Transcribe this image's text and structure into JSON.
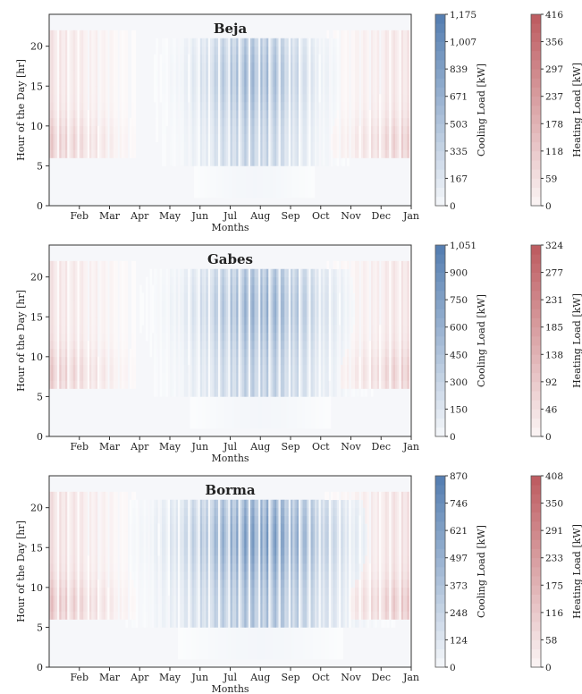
{
  "chart_data": [
    {
      "type": "heatmap",
      "title": "Beja",
      "xlabel": "Months",
      "ylabel": "Hour of the Day [hr]",
      "x_ticks": [
        "Feb",
        "Mar",
        "Apr",
        "May",
        "Jun",
        "Jul",
        "Aug",
        "Sep",
        "Oct",
        "Nov",
        "Dec",
        "Jan"
      ],
      "y_ticks": [
        0,
        5,
        10,
        15,
        20
      ],
      "ylim": [
        0,
        24
      ],
      "cooling": {
        "label": "Cooling Load [kW]",
        "ticks": [
          1175,
          1007,
          839,
          671,
          503,
          335,
          167,
          0
        ],
        "max": 1175,
        "color": "#3f6ea7",
        "peak_month": 6.8,
        "peak_width": 1.9,
        "hours": [
          5.5,
          20.5
        ],
        "peak_fraction": 0.55
      },
      "heating": {
        "label": "Heating Load [kW]",
        "ticks": [
          416,
          356,
          297,
          237,
          178,
          118,
          59,
          0
        ],
        "max": 416,
        "color": "#b5474c",
        "hours": [
          6,
          21.5
        ],
        "peak_fraction": 0.35
      }
    },
    {
      "type": "heatmap",
      "title": "Gabes",
      "xlabel": "Months",
      "ylabel": "Hour of the Day [hr]",
      "x_ticks": [
        "Feb",
        "Mar",
        "Apr",
        "May",
        "Jun",
        "Jul",
        "Aug",
        "Sep",
        "Oct",
        "Nov",
        "Dec",
        "Jan"
      ],
      "y_ticks": [
        0,
        5,
        10,
        15,
        20
      ],
      "ylim": [
        0,
        24
      ],
      "cooling": {
        "label": "Cooling Load [kW]",
        "ticks": [
          1051,
          900,
          750,
          600,
          450,
          300,
          150,
          0
        ],
        "max": 1051,
        "color": "#3f6ea7",
        "peak_month": 7.0,
        "peak_width": 2.2,
        "hours": [
          5.5,
          20.5
        ],
        "peak_fraction": 0.6
      },
      "heating": {
        "label": "Heating Load [kW]",
        "ticks": [
          324,
          277,
          231,
          185,
          138,
          92,
          46,
          0
        ],
        "max": 324,
        "color": "#b5474c",
        "hours": [
          6,
          21.5
        ],
        "peak_fraction": 0.35
      }
    },
    {
      "type": "heatmap",
      "title": "Borma",
      "xlabel": "Months",
      "ylabel": "Hour of the Day [hr]",
      "x_ticks": [
        "Feb",
        "Mar",
        "Apr",
        "May",
        "Jun",
        "Jul",
        "Aug",
        "Sep",
        "Oct",
        "Nov",
        "Dec",
        "Jan"
      ],
      "y_ticks": [
        0,
        5,
        10,
        15,
        20
      ],
      "ylim": [
        0,
        24
      ],
      "cooling": {
        "label": "Cooling Load [kW]",
        "ticks": [
          870,
          746,
          621,
          497,
          373,
          248,
          124,
          0
        ],
        "max": 870,
        "color": "#3f6ea7",
        "peak_month": 7.0,
        "peak_width": 2.6,
        "hours": [
          5.5,
          21
        ],
        "peak_fraction": 0.75
      },
      "heating": {
        "label": "Heating Load [kW]",
        "ticks": [
          408,
          350,
          291,
          233,
          175,
          116,
          58,
          0
        ],
        "max": 408,
        "color": "#b5474c",
        "hours": [
          6,
          21.5
        ],
        "peak_fraction": 0.4
      }
    }
  ]
}
